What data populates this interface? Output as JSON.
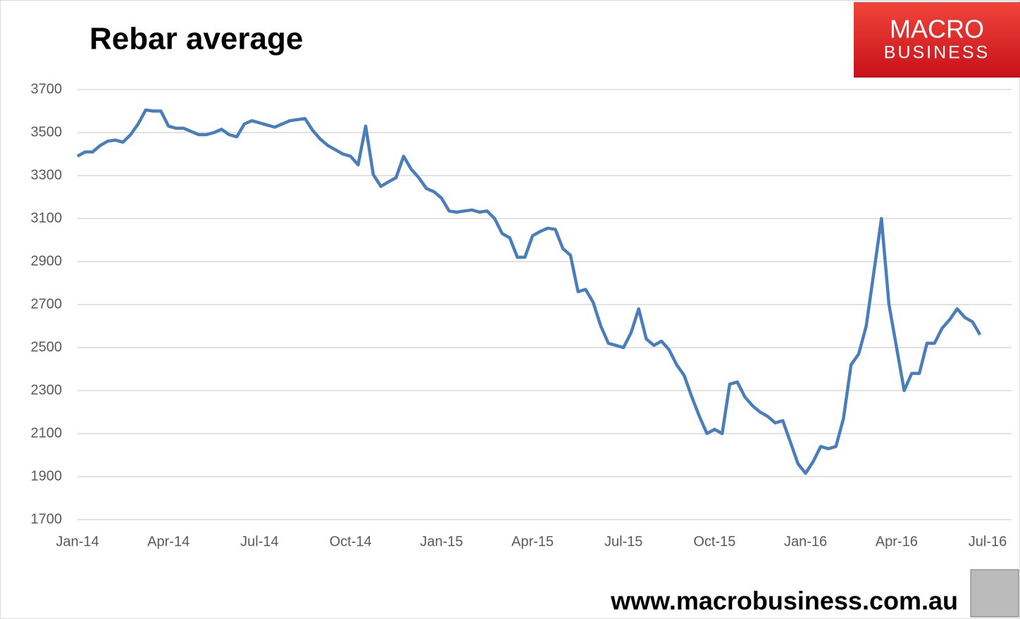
{
  "chart_data": {
    "type": "line",
    "title": "Rebar average",
    "categories": [
      "Jan-14",
      null,
      null,
      null,
      null,
      null,
      null,
      null,
      null,
      null,
      null,
      null,
      "Apr-14",
      null,
      null,
      null,
      null,
      null,
      null,
      null,
      null,
      null,
      null,
      null,
      "Jul-14",
      null,
      null,
      null,
      null,
      null,
      null,
      null,
      null,
      null,
      null,
      null,
      "Oct-14",
      null,
      null,
      null,
      null,
      null,
      null,
      null,
      null,
      null,
      null,
      null,
      "Jan-15",
      null,
      null,
      null,
      null,
      null,
      null,
      null,
      null,
      null,
      null,
      null,
      "Apr-15",
      null,
      null,
      null,
      null,
      null,
      null,
      null,
      null,
      null,
      null,
      null,
      "Jul-15",
      null,
      null,
      null,
      null,
      null,
      null,
      null,
      null,
      null,
      null,
      null,
      "Oct-15",
      null,
      null,
      null,
      null,
      null,
      null,
      null,
      null,
      null,
      null,
      null,
      "Jan-16",
      null,
      null,
      null,
      null,
      null,
      null,
      null,
      null,
      null,
      null,
      null,
      "Apr-16",
      null,
      null,
      null,
      null,
      null,
      null,
      null,
      null,
      null,
      null,
      null,
      "Jul-16"
    ],
    "values": [
      3390,
      3410,
      3410,
      3440,
      3460,
      3465,
      3455,
      3490,
      3540,
      3605,
      3600,
      3600,
      3530,
      3520,
      3520,
      3505,
      3490,
      3490,
      3500,
      3515,
      3490,
      3480,
      3540,
      3555,
      3545,
      3535,
      3525,
      3540,
      3555,
      3560,
      3565,
      3510,
      3470,
      3440,
      3420,
      3400,
      3390,
      3350,
      3530,
      3305,
      3250,
      3270,
      3290,
      3390,
      3330,
      3290,
      3240,
      3225,
      3195,
      3135,
      3130,
      3135,
      3140,
      3130,
      3135,
      3100,
      3030,
      3010,
      2920,
      2920,
      3020,
      3040,
      3055,
      3050,
      2960,
      2930,
      2760,
      2770,
      2710,
      2600,
      2520,
      2510,
      2500,
      2570,
      2680,
      2540,
      2510,
      2530,
      2490,
      2420,
      2370,
      2270,
      2180,
      2100,
      2120,
      2100,
      2330,
      2340,
      2270,
      2230,
      2200,
      2180,
      2150,
      2160,
      2060,
      1960,
      1915,
      1970,
      2040,
      2030,
      2040,
      2170,
      2420,
      2470,
      2600,
      2850,
      3100,
      2700,
      2500,
      2300,
      2380,
      2380,
      2520,
      2520,
      2590,
      2630,
      2680,
      2640,
      2620,
      2560,
      null
    ],
    "color": "#4a7ebb",
    "ylim": [
      1700,
      3700
    ],
    "yticks": [
      1700,
      1900,
      2100,
      2300,
      2500,
      2700,
      2900,
      3100,
      3300,
      3500,
      3700
    ],
    "grid": true
  },
  "logo": {
    "line1": "MACRO",
    "line2": "BUSINESS"
  },
  "footer": "www.macrobusiness.com.au"
}
